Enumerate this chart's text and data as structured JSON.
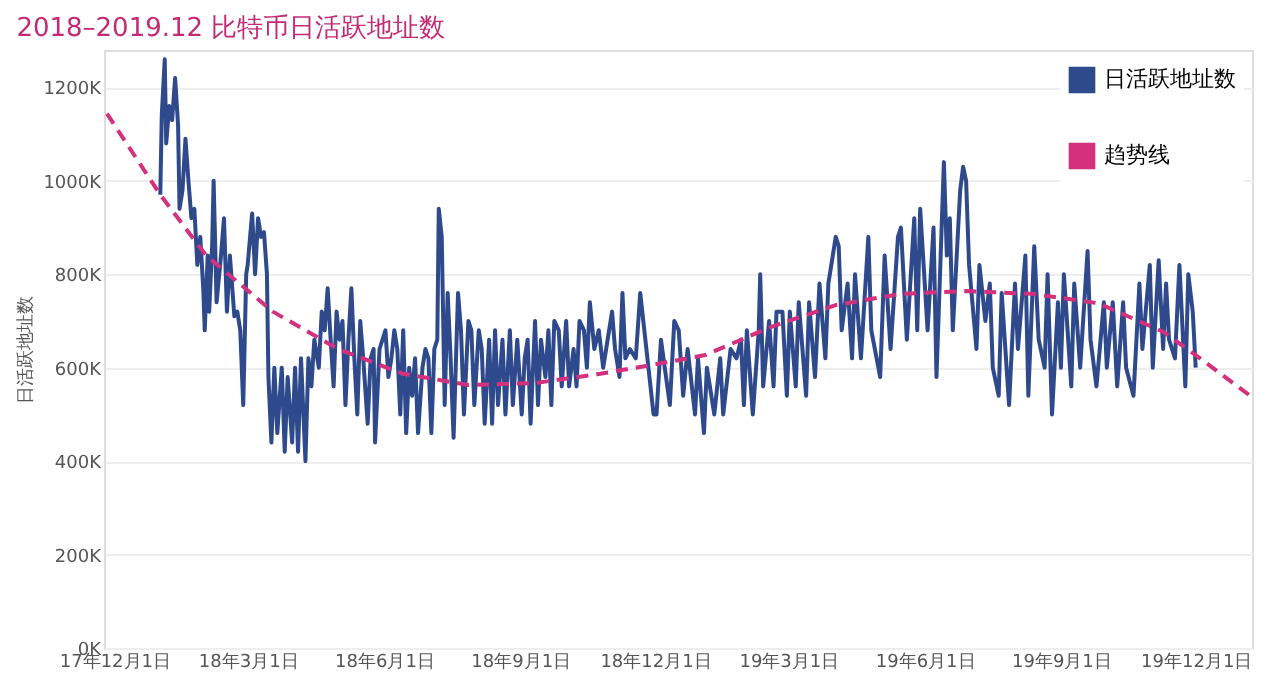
{
  "chart_data": {
    "type": "line",
    "title": "2018–2019.12 比特币日活跃地址数",
    "ylabel": "日活跃地址数",
    "xlim": [
      "2017-11-24",
      "2020-01-08"
    ],
    "xticks": [
      {
        "value": "2017-12-01",
        "label": "17年12月1日"
      },
      {
        "value": "2018-03-01",
        "label": "18年3月1日"
      },
      {
        "value": "2018-06-01",
        "label": "18年6月1日"
      },
      {
        "value": "2018-09-01",
        "label": "18年9月1日"
      },
      {
        "value": "2018-12-01",
        "label": "18年12月1日"
      },
      {
        "value": "2019-03-01",
        "label": "19年3月1日"
      },
      {
        "value": "2019-06-01",
        "label": "19年6月1日"
      },
      {
        "value": "2019-09-01",
        "label": "19年9月1日"
      },
      {
        "value": "2019-12-01",
        "label": "19年12月1日"
      }
    ],
    "ylim": [
      0,
      1280
    ],
    "yticks": [
      {
        "value": 0,
        "label": "0K"
      },
      {
        "value": 200,
        "label": "200K"
      },
      {
        "value": 400,
        "label": "400K"
      },
      {
        "value": 600,
        "label": "600K"
      },
      {
        "value": 800,
        "label": "800K"
      },
      {
        "value": 1000,
        "label": "1000K"
      },
      {
        "value": 1200,
        "label": "1200K"
      }
    ],
    "grid": "y",
    "legend": "top right",
    "series": [
      {
        "name": "日活跃地址数",
        "color": "#2f4a8c",
        "line_style": "solid",
        "x": [
          "2018-01-01",
          "2018-01-02",
          "2018-01-04",
          "2018-01-05",
          "2018-01-07",
          "2018-01-09",
          "2018-01-11",
          "2018-01-13",
          "2018-01-14",
          "2018-01-16",
          "2018-01-18",
          "2018-01-20",
          "2018-01-22",
          "2018-01-24",
          "2018-01-26",
          "2018-01-28",
          "2018-01-30",
          "2018-01-31",
          "2018-02-02",
          "2018-02-03",
          "2018-02-05",
          "2018-02-06",
          "2018-02-08",
          "2018-02-11",
          "2018-02-13",
          "2018-02-15",
          "2018-02-17",
          "2018-02-20",
          "2018-02-22",
          "2018-02-24",
          "2018-02-26",
          "2018-02-28",
          "2018-03-01",
          "2018-03-04",
          "2018-03-06",
          "2018-03-08",
          "2018-03-10",
          "2018-03-12",
          "2018-03-14",
          "2018-03-15",
          "2018-03-17",
          "2018-03-19",
          "2018-03-21",
          "2018-03-24",
          "2018-03-26",
          "2018-03-28",
          "2018-03-31",
          "2018-04-02",
          "2018-04-04",
          "2018-04-06",
          "2018-04-09",
          "2018-04-11",
          "2018-04-13",
          "2018-04-15",
          "2018-04-18",
          "2018-04-20",
          "2018-04-22",
          "2018-04-24",
          "2018-04-26",
          "2018-04-28",
          "2018-04-30",
          "2018-05-02",
          "2018-05-04",
          "2018-05-06",
          "2018-05-08",
          "2018-05-10",
          "2018-05-12",
          "2018-05-14",
          "2018-05-16",
          "2018-05-18",
          "2018-05-21",
          "2018-05-23",
          "2018-05-25",
          "2018-05-26",
          "2018-05-29",
          "2018-05-31",
          "2018-06-02",
          "2018-06-04",
          "2018-06-06",
          "2018-06-08",
          "2018-06-10",
          "2018-06-12",
          "2018-06-14",
          "2018-06-16",
          "2018-06-18",
          "2018-06-20",
          "2018-06-22",
          "2018-06-24",
          "2018-06-27",
          "2018-06-29",
          "2018-07-01",
          "2018-07-03",
          "2018-07-05",
          "2018-07-07",
          "2018-07-08",
          "2018-07-10",
          "2018-07-12",
          "2018-07-14",
          "2018-07-16",
          "2018-07-18",
          "2018-07-21",
          "2018-07-23",
          "2018-07-25",
          "2018-07-28",
          "2018-07-30",
          "2018-08-01",
          "2018-08-04",
          "2018-08-06",
          "2018-08-08",
          "2018-08-11",
          "2018-08-13",
          "2018-08-15",
          "2018-08-17",
          "2018-08-20",
          "2018-08-22",
          "2018-08-25",
          "2018-08-27",
          "2018-08-30",
          "2018-09-02",
          "2018-09-04",
          "2018-09-06",
          "2018-09-08",
          "2018-09-11",
          "2018-09-13",
          "2018-09-15",
          "2018-09-18",
          "2018-09-20",
          "2018-09-22",
          "2018-09-24",
          "2018-09-27",
          "2018-09-29",
          "2018-10-02",
          "2018-10-04",
          "2018-10-07",
          "2018-10-09",
          "2018-10-11",
          "2018-10-14",
          "2018-10-16",
          "2018-10-18",
          "2018-10-21",
          "2018-10-24",
          "2018-10-27",
          "2018-10-30",
          "2018-11-02",
          "2018-11-04",
          "2018-11-07",
          "2018-11-09",
          "2018-11-11",
          "2018-11-14",
          "2018-11-18",
          "2018-11-21",
          "2018-11-30",
          "2018-12-02",
          "2018-12-05",
          "2018-12-11",
          "2018-12-14",
          "2018-12-17",
          "2018-12-20",
          "2018-12-23",
          "2018-12-28",
          "2018-12-30",
          "2019-01-03",
          "2019-01-05",
          "2019-01-10",
          "2019-01-14",
          "2019-01-16",
          "2019-01-21",
          "2019-01-25",
          "2019-01-28",
          "2019-01-30",
          "2019-02-01",
          "2019-02-05",
          "2019-02-09",
          "2019-02-10",
          "2019-02-12",
          "2019-02-16",
          "2019-02-19",
          "2019-02-21",
          "2019-02-25",
          "2019-02-28",
          "2019-03-02",
          "2019-03-06",
          "2019-03-08",
          "2019-03-13",
          "2019-03-15",
          "2019-03-19",
          "2019-03-22",
          "2019-03-26",
          "2019-03-28",
          "2019-04-02",
          "2019-04-04",
          "2019-04-06",
          "2019-04-10",
          "2019-04-13",
          "2019-04-15",
          "2019-04-19",
          "2019-04-24",
          "2019-04-26",
          "2019-05-02",
          "2019-05-05",
          "2019-05-09",
          "2019-05-14",
          "2019-05-16",
          "2019-05-20",
          "2019-05-25",
          "2019-05-27",
          "2019-05-29",
          "2019-06-03",
          "2019-06-07",
          "2019-06-09",
          "2019-06-14",
          "2019-06-16",
          "2019-06-18",
          "2019-06-20",
          "2019-06-25",
          "2019-06-27",
          "2019-06-29",
          "2019-07-01",
          "2019-07-06",
          "2019-07-08",
          "2019-07-12",
          "2019-07-15",
          "2019-07-17",
          "2019-07-21",
          "2019-07-23",
          "2019-07-28",
          "2019-08-01",
          "2019-08-03",
          "2019-08-08",
          "2019-08-10",
          "2019-08-14",
          "2019-08-17",
          "2019-08-21",
          "2019-08-23",
          "2019-08-26",
          "2019-08-30",
          "2019-09-01",
          "2019-09-03",
          "2019-09-08",
          "2019-09-10",
          "2019-09-14",
          "2019-09-19",
          "2019-09-21",
          "2019-09-25",
          "2019-09-30",
          "2019-10-02",
          "2019-10-06",
          "2019-10-09",
          "2019-10-13",
          "2019-10-15",
          "2019-10-20",
          "2019-10-24",
          "2019-10-26",
          "2019-10-31",
          "2019-11-02",
          "2019-11-06",
          "2019-11-09",
          "2019-11-11",
          "2019-11-13",
          "2019-11-17",
          "2019-11-20",
          "2019-11-24",
          "2019-11-26",
          "2019-11-29",
          "2019-12-01"
        ],
        "values": [
          970,
          1140,
          1260,
          1080,
          1160,
          1130,
          1220,
          1120,
          940,
          980,
          1090,
          1000,
          920,
          940,
          820,
          880,
          770,
          680,
          840,
          720,
          860,
          1000,
          740,
          840,
          920,
          720,
          840,
          710,
          720,
          680,
          520,
          800,
          820,
          930,
          800,
          920,
          880,
          890,
          800,
          580,
          440,
          600,
          460,
          600,
          420,
          580,
          440,
          600,
          420,
          620,
          400,
          620,
          560,
          660,
          600,
          720,
          680,
          770,
          660,
          560,
          720,
          660,
          700,
          520,
          660,
          770,
          620,
          500,
          700,
          620,
          480,
          620,
          640,
          440,
          640,
          660,
          680,
          580,
          620,
          680,
          640,
          500,
          680,
          460,
          600,
          540,
          620,
          460,
          600,
          640,
          620,
          460,
          640,
          660,
          940,
          880,
          520,
          760,
          620,
          450,
          760,
          680,
          500,
          700,
          680,
          520,
          680,
          640,
          480,
          660,
          480,
          680,
          520,
          660,
          500,
          680,
          520,
          660,
          500,
          620,
          660,
          480,
          700,
          520,
          660,
          580,
          680,
          520,
          700,
          680,
          560,
          700,
          560,
          640,
          560,
          700,
          680,
          600,
          740,
          640,
          680,
          600,
          660,
          720,
          640,
          580,
          760,
          620,
          640,
          620,
          760,
          500,
          500,
          660,
          520,
          700,
          680,
          540,
          640,
          500,
          620,
          460,
          600,
          500,
          620,
          500,
          640,
          620,
          660,
          520,
          680,
          500,
          680,
          800,
          560,
          700,
          560,
          720,
          720,
          540,
          720,
          560,
          740,
          540,
          740,
          580,
          780,
          620,
          780,
          880,
          860,
          680,
          780,
          620,
          800,
          620,
          880,
          680,
          580,
          840,
          640,
          880,
          900,
          660,
          920,
          680,
          940,
          680,
          900,
          580,
          1040,
          840,
          920,
          680,
          980,
          1030,
          1000,
          820,
          640,
          820,
          700,
          780,
          600,
          540,
          760,
          520,
          780,
          640,
          840,
          540,
          860,
          660,
          600,
          800,
          500,
          740,
          600,
          800,
          560,
          780,
          600,
          850,
          660,
          560,
          740,
          600,
          740,
          560,
          740,
          600,
          540,
          780,
          640,
          820,
          600,
          830,
          640,
          780,
          660,
          620,
          820,
          560,
          800,
          720,
          600
        ]
      },
      {
        "name": "趋势线",
        "color": "#d4307e",
        "line_style": "dashed",
        "x": [
          "2017-11-26",
          "2018-01-01",
          "2018-02-01",
          "2018-03-18",
          "2018-05-01",
          "2018-06-14",
          "2018-07-28",
          "2018-09-11",
          "2018-10-25",
          "2018-12-01",
          "2019-01-04",
          "2019-02-17",
          "2019-04-02",
          "2019-05-16",
          "2019-06-29",
          "2019-08-13",
          "2019-09-26",
          "2019-11-09",
          "2019-12-01",
          "2020-01-08"
        ],
        "values": [
          1144,
          970,
          840,
          720,
          640,
          587,
          563,
          567,
          587,
          607,
          627,
          687,
          734,
          758,
          764,
          758,
          738,
          677,
          627,
          537
        ]
      }
    ]
  }
}
